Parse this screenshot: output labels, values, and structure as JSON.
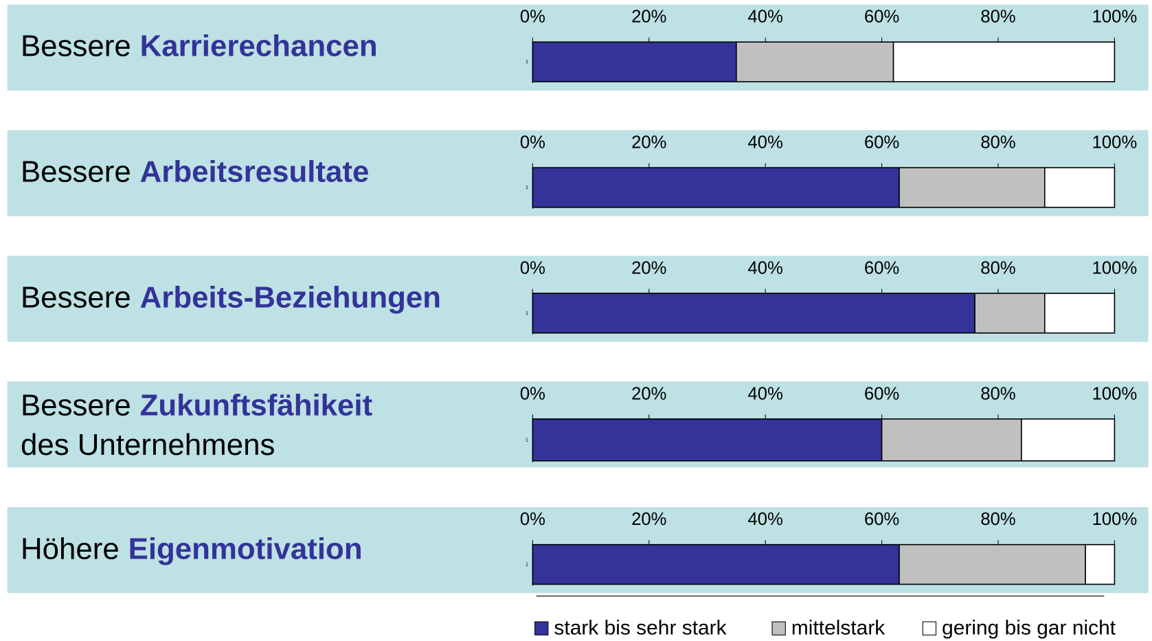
{
  "legend": [
    {
      "name": "stark bis sehr stark",
      "color": "#333399"
    },
    {
      "name": "mittelstark",
      "color": "#c0c0c0"
    },
    {
      "name": "gering bis gar nicht",
      "color": "#ffffff"
    }
  ],
  "chart_data": [
    {
      "type": "stacked-bar",
      "title": [
        "Bessere",
        "Karrierechancen"
      ],
      "categories": [
        "1"
      ],
      "series": [
        {
          "values": [
            35
          ]
        },
        {
          "values": [
            27
          ]
        },
        {
          "values": [
            38
          ]
        }
      ],
      "xlim": [
        0,
        100
      ],
      "xticks": [
        {
          "value": 0,
          "label": "0%"
        },
        {
          "value": 20,
          "label": "20%"
        },
        {
          "value": 40,
          "label": "40%"
        },
        {
          "value": 60,
          "label": "60%"
        },
        {
          "value": 80,
          "label": "80%"
        },
        {
          "value": 100,
          "label": "100%"
        }
      ]
    },
    {
      "type": "stacked-bar",
      "title": [
        "Bessere",
        "Arbeitsresultate"
      ],
      "categories": [
        "1"
      ],
      "series": [
        {
          "values": [
            63
          ]
        },
        {
          "values": [
            25
          ]
        },
        {
          "values": [
            12
          ]
        }
      ],
      "xlim": [
        0,
        100
      ],
      "xticks": [
        {
          "value": 0,
          "label": "0%"
        },
        {
          "value": 20,
          "label": "20%"
        },
        {
          "value": 40,
          "label": "40%"
        },
        {
          "value": 60,
          "label": "60%"
        },
        {
          "value": 80,
          "label": "80%"
        },
        {
          "value": 100,
          "label": "100%"
        }
      ]
    },
    {
      "type": "stacked-bar",
      "title": [
        "Bessere",
        "Arbeits-Beziehungen"
      ],
      "categories": [
        "1"
      ],
      "series": [
        {
          "values": [
            76
          ]
        },
        {
          "values": [
            12
          ]
        },
        {
          "values": [
            12
          ]
        }
      ],
      "xlim": [
        0,
        100
      ],
      "xticks": [
        {
          "value": 0,
          "label": "0%"
        },
        {
          "value": 20,
          "label": "20%"
        },
        {
          "value": 40,
          "label": "40%"
        },
        {
          "value": 60,
          "label": "60%"
        },
        {
          "value": 80,
          "label": "80%"
        },
        {
          "value": 100,
          "label": "100%"
        }
      ]
    },
    {
      "type": "stacked-bar",
      "title": [
        "Bessere",
        "Zukunftsfähikeit",
        "des Unternehmens"
      ],
      "categories": [
        "1"
      ],
      "series": [
        {
          "values": [
            60
          ]
        },
        {
          "values": [
            24
          ]
        },
        {
          "values": [
            16
          ]
        }
      ],
      "xlim": [
        0,
        100
      ],
      "xticks": [
        {
          "value": 0,
          "label": "0%"
        },
        {
          "value": 20,
          "label": "20%"
        },
        {
          "value": 40,
          "label": "40%"
        },
        {
          "value": 60,
          "label": "60%"
        },
        {
          "value": 80,
          "label": "80%"
        },
        {
          "value": 100,
          "label": "100%"
        }
      ]
    },
    {
      "type": "stacked-bar",
      "title": [
        "Höhere",
        "Eigenmotivation"
      ],
      "categories": [
        "1"
      ],
      "series": [
        {
          "values": [
            63
          ]
        },
        {
          "values": [
            32
          ]
        },
        {
          "values": [
            5
          ]
        }
      ],
      "xlim": [
        0,
        100
      ],
      "xticks": [
        {
          "value": 0,
          "label": "0%"
        },
        {
          "value": 20,
          "label": "20%"
        },
        {
          "value": 40,
          "label": "40%"
        },
        {
          "value": 60,
          "label": "60%"
        },
        {
          "value": 80,
          "label": "80%"
        },
        {
          "value": 100,
          "label": "100%"
        }
      ]
    }
  ]
}
